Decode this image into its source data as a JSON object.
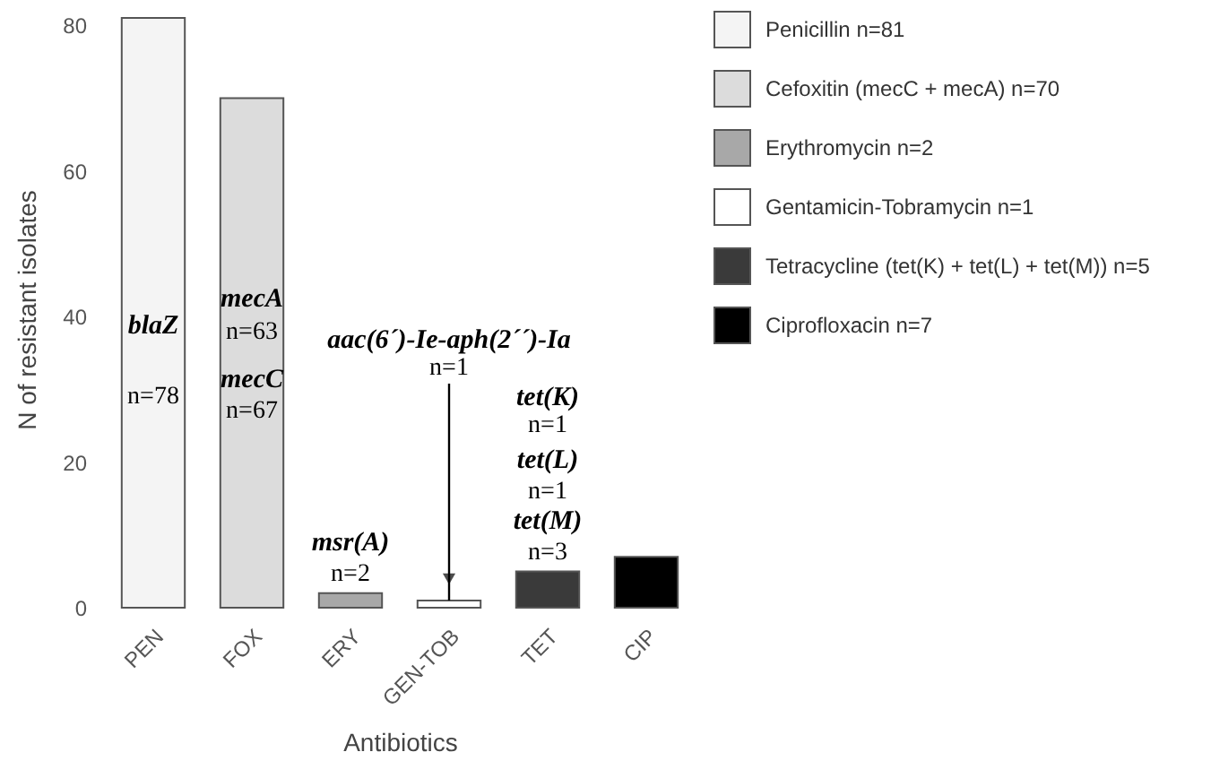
{
  "chart_data": {
    "type": "bar",
    "xlabel": "Antibiotics",
    "ylabel": "N of resistant isolates",
    "categories": [
      "PEN",
      "FOX",
      "ERY",
      "GEN-TOB",
      "TET",
      "CIP"
    ],
    "series": [
      {
        "name": "Penicillin n=81",
        "color": "#f4f4f4",
        "values": [
          81,
          null,
          null,
          null,
          null,
          null
        ]
      },
      {
        "name": "Cefoxitin (mecC + mecA) n=70",
        "color": "#dcdcdc",
        "values": [
          null,
          70,
          null,
          null,
          null,
          null
        ]
      },
      {
        "name": "Erythromycin n=2",
        "color": "#a8a8a8",
        "values": [
          null,
          null,
          2,
          null,
          null,
          null
        ]
      },
      {
        "name": "Gentamicin-Tobramycin n=1",
        "color": "#ffffff",
        "values": [
          null,
          null,
          null,
          1,
          null,
          null
        ]
      },
      {
        "name": "Tetracycline (tet(K) + tet(L) + tet(M)) n=5",
        "color": "#3a3a3a",
        "values": [
          null,
          null,
          null,
          null,
          5,
          null
        ]
      },
      {
        "name": "Ciprofloxacin n=7",
        "color": "#000000",
        "values": [
          null,
          null,
          null,
          null,
          null,
          7
        ]
      }
    ],
    "ylim": [
      0,
      82
    ],
    "yticks": [
      0,
      20,
      40,
      60,
      80
    ],
    "grid": false,
    "legend": "right",
    "annotations": [
      "blaZ",
      "n=78",
      "mecA",
      "n=63",
      "mecC",
      "n=67",
      {
        "text": "aac(6´)-Ie-aph(2´´)-Ia",
        "x": "GEN-TOB",
        "y": 1
      },
      "n=1",
      "msr(A)",
      "n=2",
      "tet(K)",
      "n=1",
      "tet(L)",
      "n=1",
      "tet(M)",
      "n=3"
    ]
  }
}
